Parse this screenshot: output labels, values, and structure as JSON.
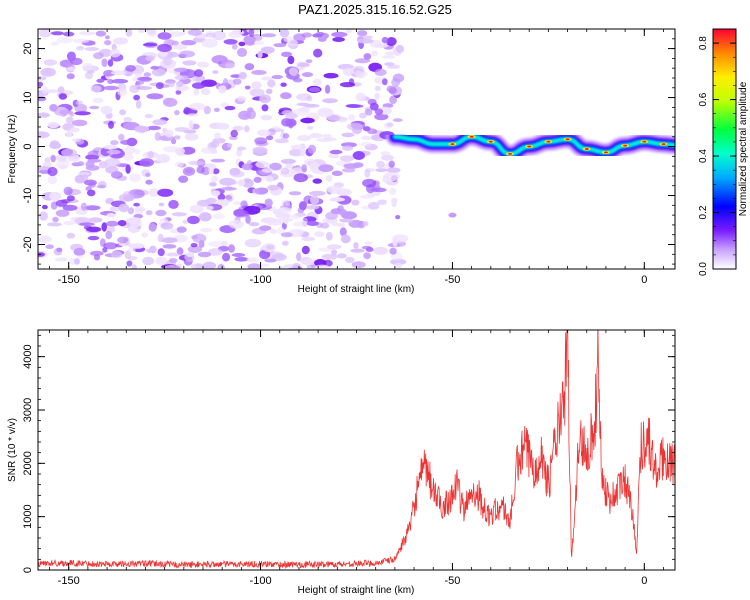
{
  "title": "PAZ1.2025.315.16.52.G25",
  "chart_data": [
    {
      "type": "heatmap",
      "panel": "spectrogram",
      "xlabel": "Height of straight line (km)",
      "ylabel": "Frequency (Hz)",
      "xlim": [
        -158,
        8
      ],
      "ylim": [
        -25,
        24
      ],
      "xticks": [
        -150,
        -100,
        -50,
        0
      ],
      "xtick_labels": [
        "-150",
        "-100",
        "-50",
        "0"
      ],
      "yticks": [
        -20,
        -10,
        0,
        10,
        20
      ],
      "ytick_labels": [
        "-20",
        "-10",
        "0",
        "10",
        "20"
      ],
      "noise_region_x": [
        -158,
        -65
      ],
      "signal_start_x": -65,
      "ridge": {
        "x": [
          -65,
          -60,
          -55,
          -50,
          -45,
          -40,
          -35,
          -30,
          -25,
          -20,
          -15,
          -10,
          -5,
          0,
          5,
          8
        ],
        "y": [
          2,
          1.5,
          0.5,
          0.5,
          2,
          1,
          -1.5,
          0,
          1,
          1.5,
          -0.5,
          -1.2,
          0.2,
          1,
          0.5,
          0.3
        ]
      },
      "colorbar": {
        "label": "Normalized spectral amplitude",
        "range": [
          0,
          0.85
        ],
        "ticks": [
          0.0,
          0.2,
          0.4,
          0.6,
          0.8
        ],
        "tick_labels": [
          "0.0",
          "0.2",
          "0.4",
          "0.6",
          "0.8"
        ]
      }
    },
    {
      "type": "line",
      "panel": "snr",
      "xlabel": "Height of straight line (km)",
      "ylabel": "SNR (10 * v/v)",
      "xlim": [
        -158,
        8
      ],
      "ylim": [
        0,
        4500
      ],
      "xticks": [
        -150,
        -100,
        -50,
        0
      ],
      "xtick_labels": [
        "-150",
        "-100",
        "-50",
        "0"
      ],
      "yticks": [
        0,
        1000,
        2000,
        3000,
        4000
      ],
      "ytick_labels": [
        "0",
        "1000",
        "2000",
        "3000",
        "4000"
      ],
      "series": [
        {
          "name": "SNR",
          "color": "#ee3333",
          "x": [
            -158,
            -150,
            -140,
            -130,
            -120,
            -110,
            -100,
            -90,
            -80,
            -70,
            -65,
            -61,
            -59,
            -57,
            -55,
            -53,
            -51,
            -49,
            -47,
            -45,
            -43,
            -41,
            -39,
            -37,
            -35,
            -33,
            -31,
            -29,
            -27,
            -25,
            -23,
            -21,
            -20,
            -19,
            -17,
            -15,
            -13,
            -12,
            -11,
            -9,
            -7,
            -5,
            -3,
            -2,
            -1,
            1,
            3,
            5,
            7,
            8
          ],
          "values": [
            120,
            130,
            110,
            120,
            100,
            110,
            110,
            100,
            110,
            130,
            200,
            800,
            1600,
            1900,
            1500,
            1200,
            1300,
            1600,
            1100,
            1500,
            1400,
            1000,
            1100,
            1200,
            900,
            2000,
            2300,
            1900,
            2200,
            1600,
            2500,
            3000,
            4400,
            150,
            2400,
            2300,
            2600,
            4000,
            1700,
            1300,
            1500,
            1700,
            1100,
            300,
            2300,
            2500,
            1800,
            2100,
            2100,
            1900
          ]
        }
      ]
    }
  ]
}
